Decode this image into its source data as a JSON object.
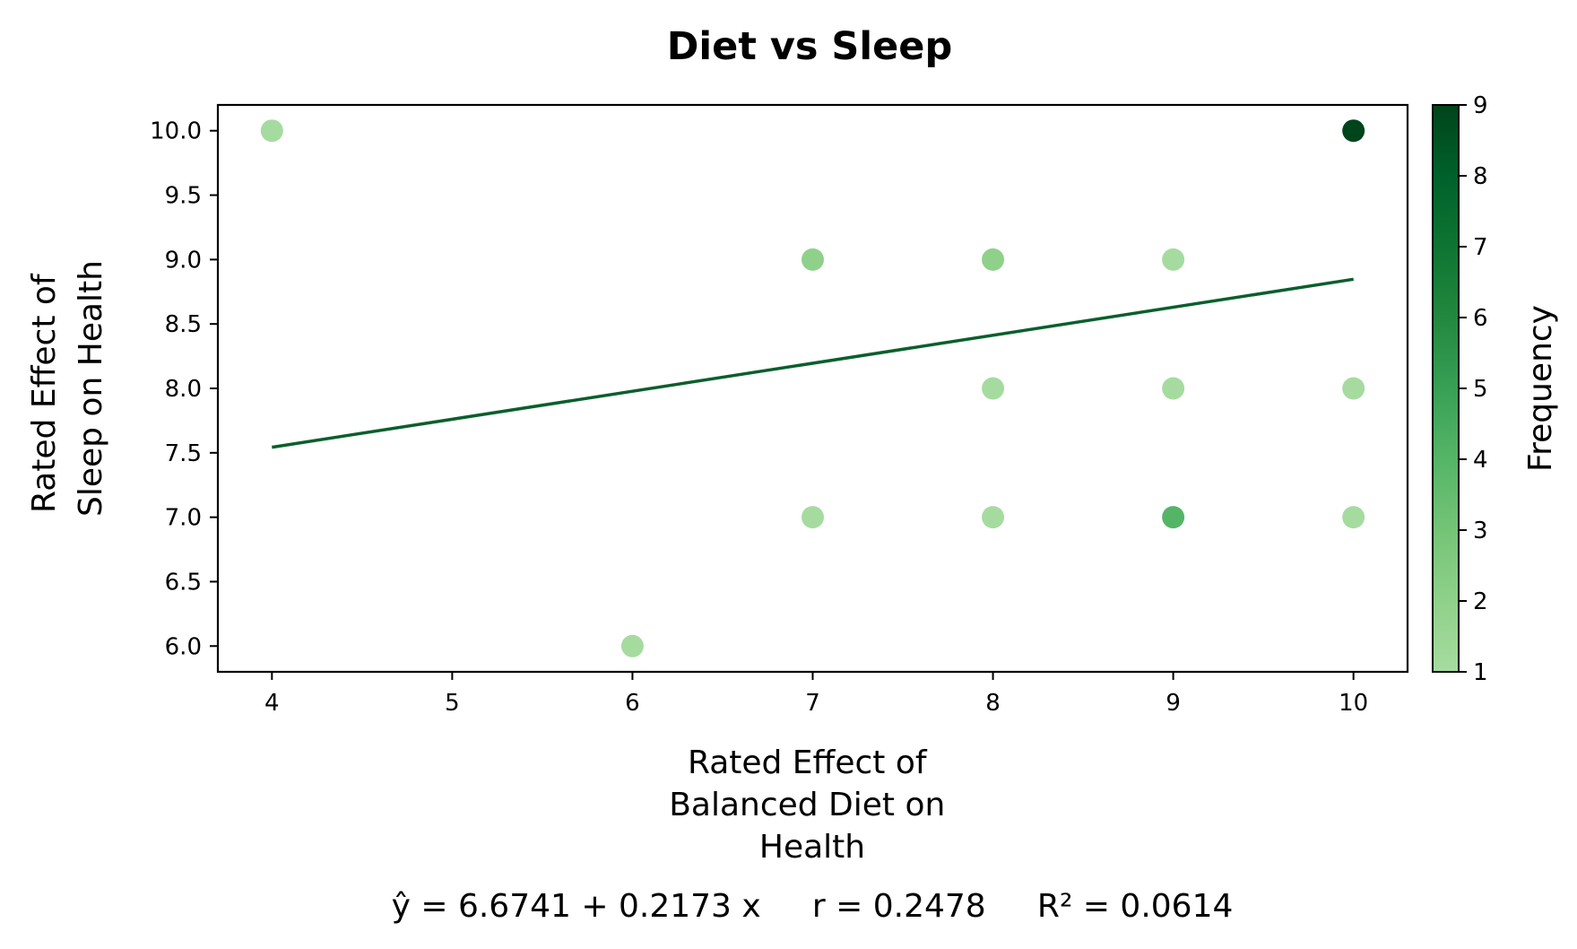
{
  "chart_data": {
    "type": "scatter",
    "title": "Diet vs Sleep",
    "xlabel": [
      "Rated Effect of",
      "Balanced Diet on",
      "Health"
    ],
    "ylabel": [
      "Rated Effect of",
      "Sleep on Health"
    ],
    "xlim": [
      3.7,
      10.3
    ],
    "ylim": [
      5.8,
      10.2
    ],
    "xticks": [
      4,
      5,
      6,
      7,
      8,
      9,
      10
    ],
    "yticks": [
      "6.0",
      "6.5",
      "7.0",
      "7.5",
      "8.0",
      "8.5",
      "9.0",
      "9.5",
      "10.0"
    ],
    "points": [
      {
        "x": 4,
        "y": 10,
        "frequency": 1
      },
      {
        "x": 6,
        "y": 6,
        "frequency": 1
      },
      {
        "x": 7,
        "y": 9,
        "frequency": 2
      },
      {
        "x": 7,
        "y": 7,
        "frequency": 1
      },
      {
        "x": 8,
        "y": 9,
        "frequency": 2
      },
      {
        "x": 8,
        "y": 8,
        "frequency": 1
      },
      {
        "x": 8,
        "y": 7,
        "frequency": 1
      },
      {
        "x": 9,
        "y": 9,
        "frequency": 1
      },
      {
        "x": 9,
        "y": 8,
        "frequency": 1
      },
      {
        "x": 9,
        "y": 7,
        "frequency": 4
      },
      {
        "x": 10,
        "y": 10,
        "frequency": 9
      },
      {
        "x": 10,
        "y": 8,
        "frequency": 1
      },
      {
        "x": 10,
        "y": 7,
        "frequency": 1
      }
    ],
    "regression": {
      "intercept": 6.6741,
      "slope": 0.2173,
      "x_range": [
        4,
        10
      ],
      "color": "#0a5f2c"
    },
    "colorbar": {
      "label": "Frequency",
      "min": 1,
      "max": 9,
      "ticks": [
        "1",
        "2",
        "3",
        "4",
        "5",
        "6",
        "7",
        "8",
        "9"
      ],
      "colors": [
        "#a6dba0",
        "#8fd18a",
        "#74c476",
        "#55b567",
        "#37a055",
        "#22883f",
        "#0d7532",
        "#00612a",
        "#00441b"
      ]
    },
    "stats_text": "ŷ = 6.6741 + 0.2173 x     r = 0.2478     R² = 0.0614",
    "grid": false
  }
}
